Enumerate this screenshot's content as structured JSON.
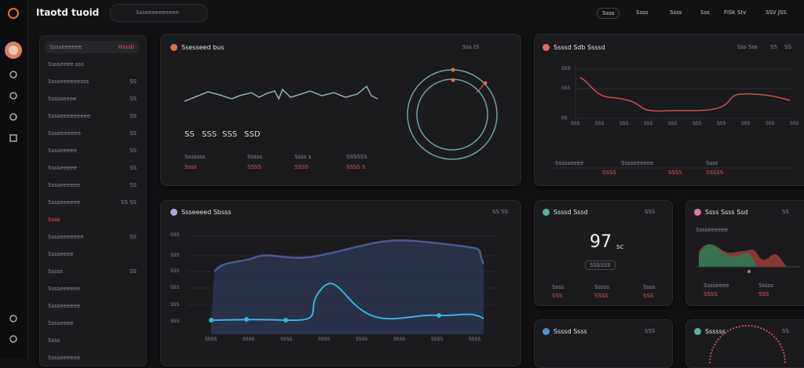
{
  "header": {
    "title": "Itaotd tuoid",
    "search": "Ssseeeeeeeeen",
    "nav_active": "Ssss",
    "nav": [
      "Ssss",
      "Ssss",
      "Sss",
      "FISk Stv",
      "SSV JSS"
    ]
  },
  "sidebar": {
    "top": {
      "label": "Sssseeeeee",
      "badge": "Hsssb"
    },
    "items": [
      {
        "label": "Sssseeee sss"
      },
      {
        "label": "Sssseeeeeesss",
        "badge": "SS"
      },
      {
        "label": "Ssssseeee",
        "badge": "SS"
      },
      {
        "label": "Sssseeeeeeeee",
        "badge": "SS"
      },
      {
        "label": "Ssseeeeeee",
        "badge": "SS"
      },
      {
        "label": "Sssseeeee",
        "badge": "SS"
      },
      {
        "label": "Sssseeeee",
        "badge": "SS"
      },
      {
        "label": "Sssseeeeee",
        "badge": "SS"
      },
      {
        "label": "Sssseeeeee",
        "badge": "SS  SS"
      },
      {
        "label": "Ssss"
      },
      {
        "label": "Sssseeeeeee",
        "badge": "SS"
      },
      {
        "label": "Sssseeee"
      },
      {
        "label": "Sssss",
        "badge": "SS"
      },
      {
        "label": "Sssseeeeee"
      },
      {
        "label": "Sssseeeeee"
      },
      {
        "label": "Sssseeee"
      },
      {
        "label": "Ssss"
      },
      {
        "label": "Sssseeeeee"
      }
    ]
  },
  "panel_overview": {
    "title": "Ssesseed bus",
    "action": "Sss tS",
    "figures": [
      "SS",
      "SSS",
      "SSS",
      "SSD"
    ],
    "stats": [
      {
        "label": "Sssssss",
        "value": "Ssss"
      },
      {
        "label": "Sssss",
        "value": "SSSS"
      },
      {
        "label": "Ssss s",
        "value": "SSSS"
      },
      {
        "label": "SSSSSS",
        "value": "SSSS S"
      }
    ]
  },
  "panel_trend": {
    "title": "Ssssd Sdb Ssssd",
    "actions": [
      "Sss Sss",
      "SS",
      "SS"
    ],
    "y_labels": [
      "SSS",
      "SSS",
      "SS"
    ],
    "x_labels": [
      "SSS",
      "SSS",
      "SSS",
      "SSS",
      "SSS",
      "SSS",
      "SSS",
      "SSS",
      "SSS",
      "SSS"
    ],
    "footer": [
      {
        "label": "Ssssseeee",
        "value": "SSSS"
      },
      {
        "label": "Sssseeeeee",
        "value": "SSSS"
      },
      {
        "label": "Ssss",
        "value": "SSSSS"
      }
    ]
  },
  "panel_flow": {
    "title": "Ssseeeed Sbsss",
    "action": "SS SS",
    "y_labels": [
      "SSS",
      "SSS",
      "SSS",
      "SSS",
      "SSS",
      "SSS"
    ],
    "x_labels": [
      "SSSS",
      "SSSS",
      "SSSS",
      "SSSS",
      "SSSS",
      "SSSS",
      "SSSS",
      "SSSS"
    ]
  },
  "panel_score": {
    "title": "Ssssd Sssd",
    "action": "SSS",
    "value": "97",
    "unit": "sc",
    "button": "SSSSSS",
    "stats": [
      {
        "label": "Ssss",
        "value": "SSS"
      },
      {
        "label": "Sssss",
        "value": "SSSS"
      },
      {
        "label": "Ssss",
        "value": "SSS"
      }
    ]
  },
  "panel_mix": {
    "title": "Ssss Ssss Ssd",
    "action": "SS",
    "caption": "Sssseeeeee",
    "stats": [
      {
        "label": "Sssseeee",
        "value": "SSSS"
      },
      {
        "label": "Sssss",
        "value": "SSS"
      }
    ]
  },
  "panel_bottom_left": {
    "title": "Ssssd Ssss",
    "action": "SSS"
  },
  "panel_bottom_right": {
    "title": "Ssssss",
    "action": "SS"
  }
}
